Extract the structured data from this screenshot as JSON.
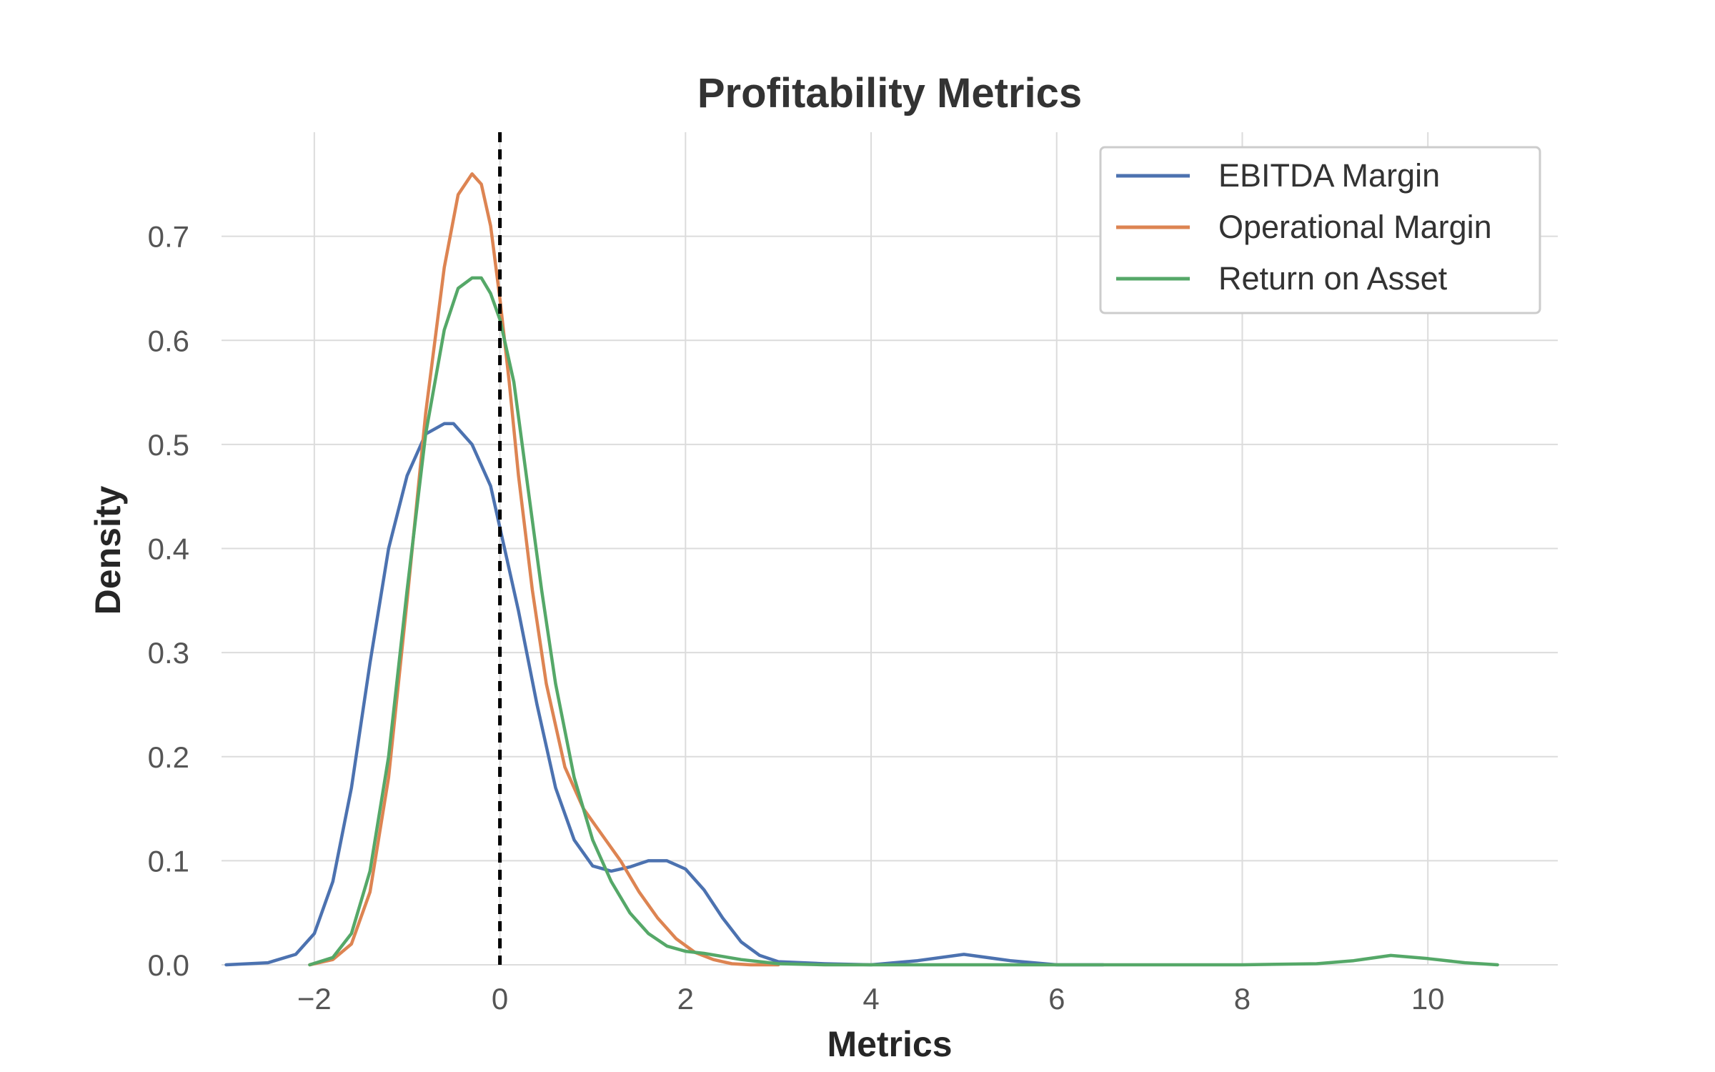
{
  "chart_data": {
    "type": "line",
    "title": "Profitability Metrics",
    "xlabel": "Metrics",
    "ylabel": "Density",
    "xlim": [
      -3.0,
      11.4
    ],
    "ylim": [
      0.0,
      0.8
    ],
    "x_ticks": [
      -2,
      0,
      2,
      4,
      6,
      8,
      10
    ],
    "x_tick_labels": [
      "−2",
      "0",
      "2",
      "4",
      "6",
      "8",
      "10"
    ],
    "y_ticks": [
      0.0,
      0.1,
      0.2,
      0.3,
      0.4,
      0.5,
      0.6,
      0.7
    ],
    "y_tick_labels": [
      "0.0",
      "0.1",
      "0.2",
      "0.3",
      "0.4",
      "0.5",
      "0.6",
      "0.7"
    ],
    "grid": true,
    "legend_position": "top-right",
    "vline": {
      "x": 0,
      "style": "dashed",
      "color": "#000000"
    },
    "series": [
      {
        "name": "EBITDA Margin",
        "color": "#4c72b0",
        "points": [
          [
            -2.95,
            0.0
          ],
          [
            -2.5,
            0.002
          ],
          [
            -2.2,
            0.01
          ],
          [
            -2.0,
            0.03
          ],
          [
            -1.8,
            0.08
          ],
          [
            -1.6,
            0.17
          ],
          [
            -1.4,
            0.29
          ],
          [
            -1.2,
            0.4
          ],
          [
            -1.0,
            0.47
          ],
          [
            -0.8,
            0.51
          ],
          [
            -0.6,
            0.52
          ],
          [
            -0.5,
            0.52
          ],
          [
            -0.3,
            0.5
          ],
          [
            -0.1,
            0.46
          ],
          [
            0.0,
            0.42
          ],
          [
            0.2,
            0.34
          ],
          [
            0.4,
            0.25
          ],
          [
            0.6,
            0.17
          ],
          [
            0.8,
            0.12
          ],
          [
            1.0,
            0.095
          ],
          [
            1.2,
            0.09
          ],
          [
            1.4,
            0.094
          ],
          [
            1.6,
            0.1
          ],
          [
            1.8,
            0.1
          ],
          [
            2.0,
            0.092
          ],
          [
            2.2,
            0.072
          ],
          [
            2.4,
            0.045
          ],
          [
            2.6,
            0.022
          ],
          [
            2.8,
            0.009
          ],
          [
            3.0,
            0.003
          ],
          [
            3.5,
            0.001
          ],
          [
            4.0,
            0.0
          ],
          [
            4.5,
            0.004
          ],
          [
            5.0,
            0.01
          ],
          [
            5.5,
            0.004
          ],
          [
            6.0,
            0.0
          ],
          [
            6.5,
            0.0
          ]
        ]
      },
      {
        "name": "Operational Margin",
        "color": "#dd8452",
        "points": [
          [
            -2.05,
            0.0
          ],
          [
            -1.8,
            0.005
          ],
          [
            -1.6,
            0.02
          ],
          [
            -1.4,
            0.07
          ],
          [
            -1.2,
            0.18
          ],
          [
            -1.0,
            0.35
          ],
          [
            -0.8,
            0.53
          ],
          [
            -0.6,
            0.67
          ],
          [
            -0.45,
            0.74
          ],
          [
            -0.3,
            0.76
          ],
          [
            -0.2,
            0.75
          ],
          [
            -0.1,
            0.71
          ],
          [
            0.0,
            0.64
          ],
          [
            0.1,
            0.56
          ],
          [
            0.2,
            0.47
          ],
          [
            0.35,
            0.36
          ],
          [
            0.5,
            0.27
          ],
          [
            0.7,
            0.19
          ],
          [
            0.9,
            0.15
          ],
          [
            1.1,
            0.125
          ],
          [
            1.3,
            0.1
          ],
          [
            1.5,
            0.07
          ],
          [
            1.7,
            0.045
          ],
          [
            1.9,
            0.025
          ],
          [
            2.1,
            0.012
          ],
          [
            2.3,
            0.005
          ],
          [
            2.5,
            0.001
          ],
          [
            2.7,
            0.0
          ],
          [
            3.0,
            0.0
          ]
        ]
      },
      {
        "name": "Return on Asset",
        "color": "#55a868",
        "points": [
          [
            -2.05,
            0.0
          ],
          [
            -1.8,
            0.007
          ],
          [
            -1.6,
            0.03
          ],
          [
            -1.4,
            0.09
          ],
          [
            -1.2,
            0.2
          ],
          [
            -1.0,
            0.36
          ],
          [
            -0.8,
            0.51
          ],
          [
            -0.6,
            0.61
          ],
          [
            -0.45,
            0.65
          ],
          [
            -0.3,
            0.66
          ],
          [
            -0.2,
            0.66
          ],
          [
            -0.1,
            0.645
          ],
          [
            0.0,
            0.62
          ],
          [
            0.15,
            0.56
          ],
          [
            0.3,
            0.46
          ],
          [
            0.45,
            0.36
          ],
          [
            0.6,
            0.27
          ],
          [
            0.8,
            0.18
          ],
          [
            1.0,
            0.12
          ],
          [
            1.2,
            0.08
          ],
          [
            1.4,
            0.05
          ],
          [
            1.6,
            0.03
          ],
          [
            1.8,
            0.018
          ],
          [
            2.0,
            0.013
          ],
          [
            2.2,
            0.011
          ],
          [
            2.4,
            0.008
          ],
          [
            2.6,
            0.005
          ],
          [
            3.0,
            0.001
          ],
          [
            3.5,
            0.0
          ],
          [
            8.0,
            0.0
          ],
          [
            8.8,
            0.001
          ],
          [
            9.2,
            0.004
          ],
          [
            9.6,
            0.009
          ],
          [
            10.0,
            0.006
          ],
          [
            10.4,
            0.002
          ],
          [
            10.75,
            0.0
          ]
        ]
      }
    ]
  }
}
